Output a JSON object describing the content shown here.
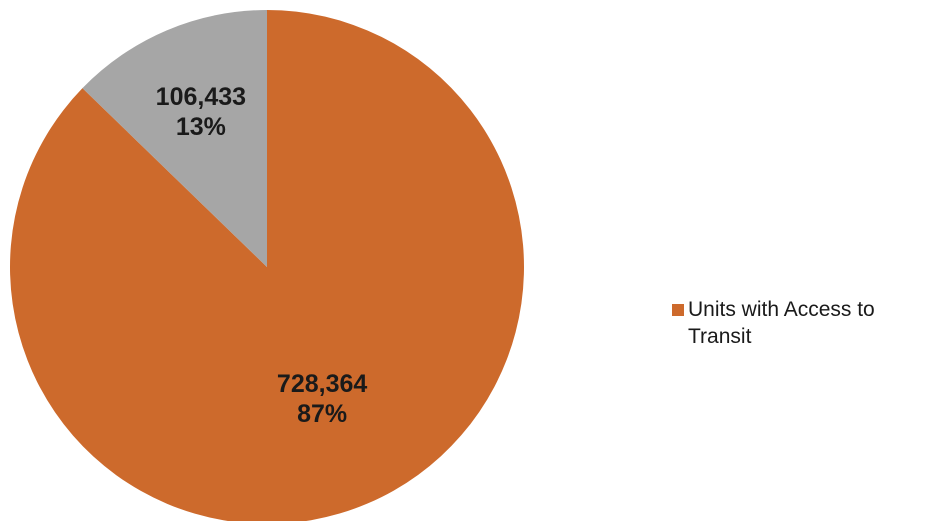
{
  "chart_data": {
    "type": "pie",
    "title": "",
    "slices": [
      {
        "name": "Units with Access to Transit",
        "value": 728364,
        "value_label": "728,364",
        "percent_label": "87%",
        "color": "#cd6a2c"
      },
      {
        "name": "",
        "value": 106433,
        "value_label": "106,433",
        "percent_label": "13%",
        "color": "#a6a6a6"
      }
    ],
    "start_angle_deg": 0,
    "direction": "clockwise",
    "legend": {
      "placement": "right",
      "entries": [
        {
          "label": "Units with Access to Transit",
          "color": "#cd6a2c"
        }
      ]
    }
  }
}
